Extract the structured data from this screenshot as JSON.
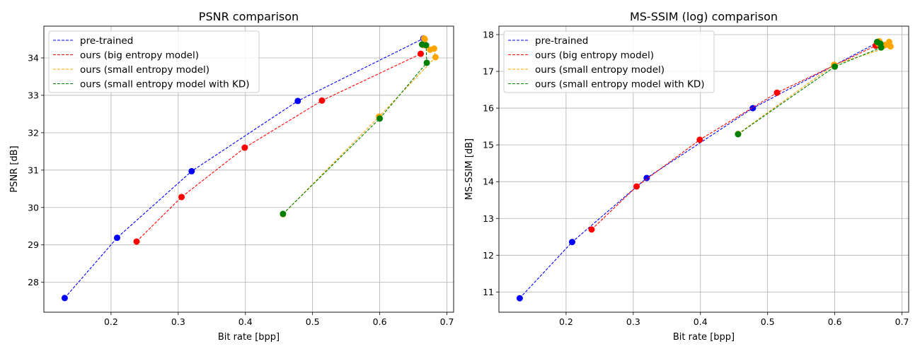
{
  "chart_data": [
    {
      "type": "line",
      "title": "PSNR comparison",
      "xlabel": "Bit rate [bpp]",
      "ylabel": "PSNR [dB]",
      "xlim": [
        0.1,
        0.71
      ],
      "ylim": [
        27.2,
        34.85
      ],
      "xticks": [
        0.2,
        0.3,
        0.4,
        0.5,
        0.6,
        0.7
      ],
      "xtick_labels": [
        "0.2",
        "0.3",
        "0.4",
        "0.5",
        "0.6",
        "0.7"
      ],
      "yticks": [
        28,
        29,
        30,
        31,
        32,
        33,
        34
      ],
      "ytick_labels": [
        "28",
        "29",
        "30",
        "31",
        "32",
        "33",
        "34"
      ],
      "grid": true,
      "legend": "top-left",
      "series": [
        {
          "name": "pre-trained",
          "color": "#0000ff",
          "points": [
            [
              0.131,
              27.58
            ],
            [
              0.209,
              29.19
            ],
            [
              0.32,
              30.97
            ],
            [
              0.478,
              32.85
            ],
            [
              0.665,
              34.52
            ]
          ]
        },
        {
          "name": "ours (big entropy model)",
          "color": "#ff0000",
          "points": [
            [
              0.238,
              29.09
            ],
            [
              0.305,
              30.28
            ],
            [
              0.399,
              31.6
            ],
            [
              0.514,
              32.86
            ],
            [
              0.661,
              34.11
            ]
          ]
        },
        {
          "name": "ours (small entropy model)",
          "color": "#ffa500",
          "points": [
            [
              0.456,
              29.82
            ],
            [
              0.599,
              32.43
            ],
            [
              0.683,
              34.02
            ],
            [
              0.681,
              34.25
            ],
            [
              0.675,
              34.22
            ],
            [
              0.667,
              34.5
            ],
            [
              0.666,
              34.52
            ],
            [
              0.665,
              34.34
            ]
          ]
        },
        {
          "name": "ours (small entropy model with KD)",
          "color": "#008000",
          "points": [
            [
              0.456,
              29.83
            ],
            [
              0.6,
              32.38
            ],
            [
              0.67,
              33.87
            ],
            [
              0.669,
              34.34
            ],
            [
              0.663,
              34.36
            ]
          ]
        }
      ]
    },
    {
      "type": "line",
      "title": "MS-SSIM (log) comparison",
      "xlabel": "Bit rate [bpp]",
      "ylabel": "MS-SSIM [dB]",
      "xlim": [
        0.1,
        0.71
      ],
      "ylim": [
        10.45,
        18.23
      ],
      "xticks": [
        0.2,
        0.3,
        0.4,
        0.5,
        0.6,
        0.7
      ],
      "xtick_labels": [
        "0.2",
        "0.3",
        "0.4",
        "0.5",
        "0.6",
        "0.7"
      ],
      "yticks": [
        11,
        12,
        13,
        14,
        15,
        16,
        17,
        18
      ],
      "ytick_labels": [
        "11",
        "12",
        "13",
        "14",
        "15",
        "16",
        "17",
        "18"
      ],
      "grid": true,
      "legend": "top-left",
      "series": [
        {
          "name": "pre-trained",
          "color": "#0000ff",
          "points": [
            [
              0.131,
              10.83
            ],
            [
              0.209,
              12.36
            ],
            [
              0.32,
              14.1
            ],
            [
              0.478,
              16.0
            ],
            [
              0.665,
              17.8
            ]
          ]
        },
        {
          "name": "ours (big entropy model)",
          "color": "#ff0000",
          "points": [
            [
              0.238,
              12.7
            ],
            [
              0.305,
              13.87
            ],
            [
              0.399,
              15.14
            ],
            [
              0.514,
              16.42
            ],
            [
              0.661,
              17.7
            ]
          ]
        },
        {
          "name": "ours (small entropy model)",
          "color": "#ffa500",
          "points": [
            [
              0.456,
              15.3
            ],
            [
              0.599,
              17.18
            ],
            [
              0.683,
              17.68
            ],
            [
              0.681,
              17.8
            ],
            [
              0.675,
              17.72
            ],
            [
              0.667,
              17.78
            ],
            [
              0.666,
              17.82
            ],
            [
              0.665,
              17.75
            ]
          ]
        },
        {
          "name": "ours (small entropy model with KD)",
          "color": "#008000",
          "points": [
            [
              0.456,
              15.29
            ],
            [
              0.6,
              17.13
            ],
            [
              0.669,
              17.65
            ],
            [
              0.668,
              17.75
            ],
            [
              0.663,
              17.8
            ]
          ]
        }
      ]
    }
  ]
}
